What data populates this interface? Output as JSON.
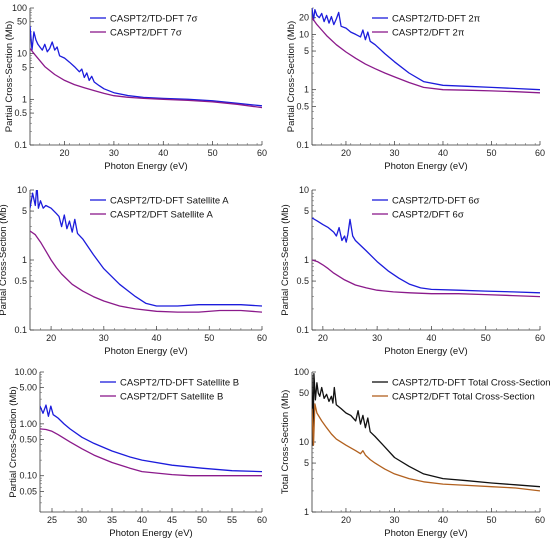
{
  "chart_data": [
    {
      "type": "line",
      "xlabel": "Photon Energy (eV)",
      "ylabel": "Partial Cross-Section (Mb)",
      "xlim": [
        13,
        60
      ],
      "ylim": [
        0.1,
        100
      ],
      "yscale": "log",
      "xticks": [
        20,
        30,
        40,
        50,
        60
      ],
      "yticks": [
        0.1,
        0.5,
        1,
        5,
        10,
        50,
        100
      ],
      "legend_position": "top-right",
      "series": [
        {
          "name": "CASPT2/TD-DFT 7σ",
          "color": "#1c1cdc",
          "x": [
            13,
            13.4,
            13.8,
            14.2,
            14.6,
            15,
            15.5,
            16,
            16.5,
            17,
            17.5,
            18,
            18.5,
            19,
            20,
            21,
            22,
            23,
            23.5,
            24,
            24.5,
            25,
            25.5,
            26,
            27,
            28,
            30,
            33,
            36,
            40,
            45,
            50,
            55,
            60
          ],
          "y": [
            40,
            12,
            30,
            20,
            16,
            14,
            12,
            16,
            11,
            13,
            18,
            12,
            14,
            9,
            8,
            6.5,
            5.2,
            4,
            4.6,
            3,
            3.8,
            2.6,
            3.2,
            2.4,
            2.0,
            1.7,
            1.4,
            1.2,
            1.1,
            1.05,
            1.0,
            0.93,
            0.82,
            0.72
          ]
        },
        {
          "name": "CASPT2/DFT 7σ",
          "color": "#8b1a8b",
          "x": [
            13,
            14,
            15,
            16,
            18,
            20,
            22,
            24,
            26,
            28,
            30,
            33,
            36,
            40,
            45,
            50,
            55,
            60
          ],
          "y": [
            13,
            9.5,
            7,
            5.2,
            3.5,
            2.6,
            2.1,
            1.8,
            1.55,
            1.35,
            1.2,
            1.1,
            1.05,
            1.0,
            0.95,
            0.88,
            0.78,
            0.66
          ]
        }
      ]
    },
    {
      "type": "line",
      "xlabel": "Photon Energy (eV)",
      "ylabel": "Partial Cross-Section (Mb)",
      "xlim": [
        13,
        60
      ],
      "ylim": [
        0.1,
        30
      ],
      "yscale": "log",
      "xticks": [
        20,
        30,
        40,
        50,
        60
      ],
      "yticks": [
        0.1,
        0.5,
        1,
        5,
        10,
        20
      ],
      "legend_position": "top-right",
      "series": [
        {
          "name": "CASPT2/TD-DFT 2π",
          "color": "#1c1cdc",
          "x": [
            13,
            13.3,
            13.6,
            14,
            14.5,
            15,
            15.5,
            16,
            16.5,
            17,
            17.5,
            18,
            18.5,
            19,
            20,
            21,
            22,
            23,
            23.5,
            24,
            24.5,
            25,
            26,
            28,
            30,
            33,
            36,
            40,
            45,
            50,
            55,
            60
          ],
          "y": [
            30,
            18,
            28,
            22,
            20,
            24,
            17,
            22,
            16,
            21,
            15,
            19,
            25,
            14,
            13,
            11,
            10,
            9,
            12,
            8,
            11,
            7.5,
            6.5,
            4.5,
            3.2,
            2.0,
            1.4,
            1.2,
            1.15,
            1.1,
            1.05,
            1.0
          ]
        },
        {
          "name": "CASPT2/DFT 2π",
          "color": "#8b1a8b",
          "x": [
            13,
            14,
            15,
            16,
            18,
            20,
            22,
            24,
            26,
            28,
            30,
            33,
            36,
            40,
            45,
            50,
            55,
            60
          ],
          "y": [
            20,
            15,
            12,
            9.5,
            6.5,
            4.8,
            3.7,
            2.9,
            2.4,
            2.0,
            1.7,
            1.35,
            1.1,
            1.0,
            0.98,
            0.95,
            0.92,
            0.88
          ]
        }
      ]
    },
    {
      "type": "line",
      "xlabel": "Photon Energy (eV)",
      "ylabel": "Partial Cross-Section (Mb)",
      "xlim": [
        16,
        60
      ],
      "ylim": [
        0.1,
        10
      ],
      "yscale": "log",
      "xticks": [
        20,
        30,
        40,
        50,
        60
      ],
      "yticks": [
        0.1,
        0.5,
        1,
        5,
        10
      ],
      "legend_position": "top-right",
      "series": [
        {
          "name": "CASPT2/TD-DFT Satellite A",
          "color": "#1c1cdc",
          "x": [
            16,
            16.5,
            17,
            17.3,
            17.6,
            18,
            18.5,
            19,
            20,
            21,
            21.5,
            22,
            22.5,
            23,
            23.5,
            24,
            24.5,
            25,
            26,
            28,
            30,
            33,
            36,
            38,
            40,
            44,
            48,
            52,
            56,
            60
          ],
          "y": [
            5.5,
            9,
            6,
            12,
            5.5,
            7,
            5.5,
            6,
            5.5,
            4.6,
            4.2,
            3.0,
            4.4,
            2.8,
            3.6,
            2.5,
            3.8,
            2.4,
            2.0,
            1.2,
            0.75,
            0.45,
            0.3,
            0.24,
            0.22,
            0.22,
            0.23,
            0.23,
            0.23,
            0.22
          ]
        },
        {
          "name": "CASPT2/DFT Satellite A",
          "color": "#8b1a8b",
          "x": [
            16,
            17,
            18,
            19,
            20,
            21,
            22,
            24,
            26,
            28,
            30,
            33,
            36,
            40,
            44,
            48,
            52,
            56,
            60
          ],
          "y": [
            2.6,
            2.3,
            1.8,
            1.35,
            1.0,
            0.78,
            0.63,
            0.45,
            0.36,
            0.3,
            0.26,
            0.22,
            0.2,
            0.185,
            0.18,
            0.18,
            0.19,
            0.19,
            0.18
          ]
        }
      ]
    },
    {
      "type": "line",
      "xlabel": "Photon Energy (eV)",
      "ylabel": "Partial Cross-Section (Mb)",
      "xlim": [
        18,
        60
      ],
      "ylim": [
        0.1,
        10
      ],
      "yscale": "log",
      "xticks": [
        20,
        30,
        40,
        50,
        60
      ],
      "yticks": [
        0.1,
        0.5,
        1,
        5,
        10
      ],
      "legend_position": "top-right",
      "series": [
        {
          "name": "CASPT2/TD-DFT 6σ",
          "color": "#1c1cdc",
          "x": [
            18,
            19,
            20,
            21,
            22,
            22.5,
            23,
            23.5,
            24,
            24.3,
            24.6,
            25,
            25.5,
            26,
            28,
            30,
            32,
            34,
            36,
            38,
            40,
            45,
            50,
            55,
            60
          ],
          "y": [
            4.0,
            3.6,
            3.2,
            2.9,
            2.5,
            2.2,
            2.9,
            1.9,
            2.2,
            1.8,
            2.3,
            3.8,
            2.2,
            1.9,
            1.35,
            0.95,
            0.7,
            0.55,
            0.45,
            0.4,
            0.38,
            0.37,
            0.36,
            0.35,
            0.34
          ]
        },
        {
          "name": "CASPT2/DFT 6σ",
          "color": "#8b1a8b",
          "x": [
            18,
            19,
            20,
            21,
            22,
            24,
            26,
            28,
            30,
            33,
            36,
            40,
            45,
            50,
            55,
            60
          ],
          "y": [
            1.0,
            0.95,
            0.85,
            0.75,
            0.65,
            0.52,
            0.44,
            0.4,
            0.37,
            0.35,
            0.34,
            0.33,
            0.33,
            0.32,
            0.31,
            0.3
          ]
        }
      ]
    },
    {
      "type": "line",
      "xlabel": "Photon Energy (eV)",
      "ylabel": "Partial Cross-Section (Mb)",
      "xlim": [
        23,
        60
      ],
      "ylim": [
        0.02,
        10
      ],
      "yscale": "log",
      "xticks": [
        25,
        30,
        35,
        40,
        45,
        50,
        55,
        60
      ],
      "yticks": [
        0.05,
        0.1,
        0.5,
        1,
        5,
        10
      ],
      "ytick_labels": [
        "0.05",
        "0.10",
        "0.50",
        "1.00",
        "5.00",
        "10.00"
      ],
      "legend_position": "top-right",
      "series": [
        {
          "name": "CASPT2/TD-DFT Satellite B",
          "color": "#1c1cdc",
          "x": [
            23,
            23.5,
            24,
            24.4,
            24.8,
            25.2,
            25.6,
            26,
            27,
            28,
            30,
            32,
            35,
            38,
            40,
            45,
            50,
            55,
            60
          ],
          "y": [
            2.2,
            1.6,
            2.3,
            1.4,
            2.2,
            1.5,
            1.4,
            1.3,
            1.0,
            0.8,
            0.55,
            0.42,
            0.3,
            0.23,
            0.2,
            0.16,
            0.14,
            0.125,
            0.12
          ]
        },
        {
          "name": "CASPT2/DFT Satellite B",
          "color": "#8b1a8b",
          "x": [
            23,
            24,
            25,
            26,
            28,
            30,
            32,
            35,
            38,
            40,
            45,
            48,
            50,
            55,
            60
          ],
          "y": [
            0.8,
            0.78,
            0.72,
            0.62,
            0.45,
            0.33,
            0.25,
            0.18,
            0.14,
            0.12,
            0.105,
            0.1,
            0.1,
            0.1,
            0.1
          ]
        }
      ]
    },
    {
      "type": "line",
      "xlabel": "Photon Energy (eV)",
      "ylabel": "Total Cross-Section (Mb)",
      "xlim": [
        13,
        60
      ],
      "ylim": [
        1,
        100
      ],
      "yscale": "log",
      "xticks": [
        20,
        30,
        40,
        50,
        60
      ],
      "yticks": [
        1,
        5,
        10,
        50,
        100
      ],
      "legend_position": "top-right",
      "series": [
        {
          "name": "CASPT2/TD-DFT Total Cross-Section",
          "color": "#111111",
          "x": [
            13,
            13.2,
            13.4,
            13.7,
            14,
            14.3,
            14.6,
            15,
            15.5,
            16,
            16.5,
            17,
            17.3,
            17.6,
            18,
            19,
            20,
            21,
            22,
            22.5,
            23,
            23.5,
            24,
            24.5,
            25,
            26,
            28,
            30,
            33,
            36,
            40,
            45,
            50,
            55,
            60
          ],
          "y": [
            90,
            9,
            95,
            40,
            70,
            50,
            45,
            60,
            42,
            48,
            38,
            45,
            36,
            60,
            34,
            30,
            26,
            24,
            20,
            28,
            18,
            24,
            16,
            22,
            14,
            12,
            8.5,
            6,
            4.5,
            3.5,
            3.0,
            2.8,
            2.6,
            2.45,
            2.3
          ]
        },
        {
          "name": "CASPT2/DFT Total Cross-Section",
          "color": "#b2611f",
          "x": [
            13,
            13.3,
            13.6,
            14,
            15,
            16,
            17,
            18,
            20,
            22,
            23,
            23.5,
            24,
            25,
            26,
            28,
            30,
            33,
            36,
            40,
            45,
            50,
            55,
            60
          ],
          "y": [
            30,
            9,
            35,
            26,
            20,
            16,
            13,
            11,
            9,
            7.5,
            6.8,
            7.5,
            6.5,
            5.6,
            5,
            4.1,
            3.5,
            3.0,
            2.7,
            2.5,
            2.4,
            2.3,
            2.2,
            2.0
          ]
        }
      ]
    }
  ]
}
